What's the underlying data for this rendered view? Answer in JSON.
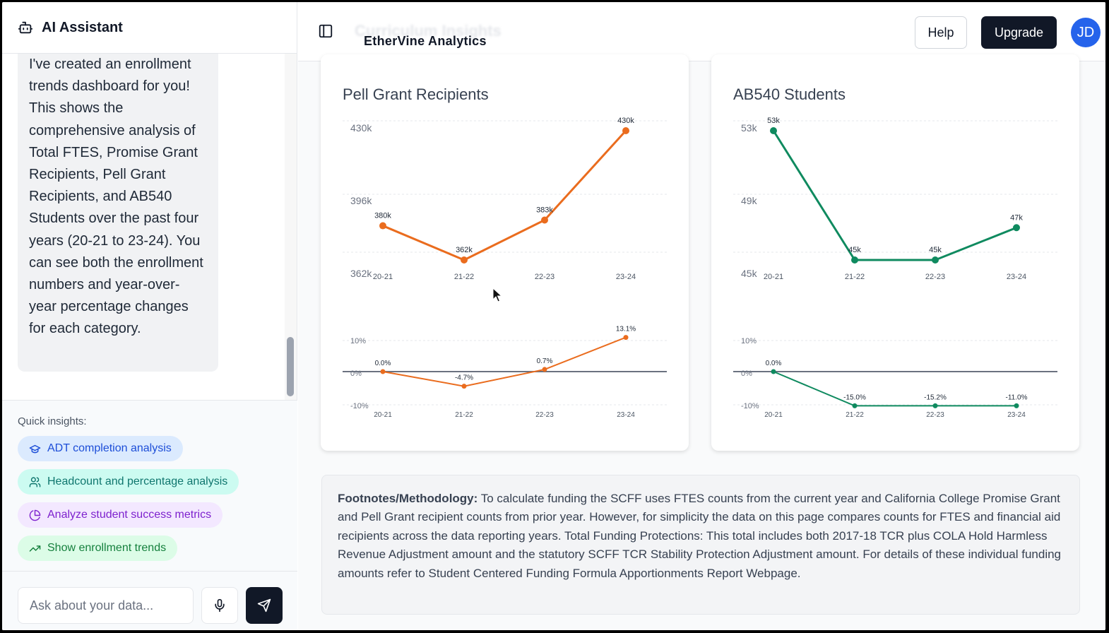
{
  "sidebar": {
    "title": "AI Assistant",
    "message": "I've created an enrollment trends dashboard for you! This shows the comprehensive analysis of Total FTES, Promise Grant Recipients, Pell Grant Recipients, and AB540 Students over the past four years (20-21 to 23-24). You can see both the enrollment numbers and year-over-year percentage changes for each category.",
    "quick_insights_label": "Quick insights:",
    "chips": [
      {
        "label": "ADT completion analysis",
        "icon": "graduation-cap-icon"
      },
      {
        "label": "Headcount and percentage analysis",
        "icon": "users-icon"
      },
      {
        "label": "Analyze student success metrics",
        "icon": "pie-chart-icon"
      },
      {
        "label": "Show enrollment trends",
        "icon": "trending-up-icon"
      }
    ],
    "input_placeholder": "Ask about your data..."
  },
  "header": {
    "ghost_title": "Curriculum Insights",
    "brand": "EtherVine Analytics",
    "help": "Help",
    "upgrade": "Upgrade",
    "avatar": "JD"
  },
  "colors": {
    "pell": "#ea6c1e",
    "ab540": "#0f8a5f",
    "accent_dark": "#111827",
    "avatar": "#2563eb"
  },
  "chart_data": [
    {
      "type": "line",
      "title": "Pell Grant Recipients",
      "categories": [
        "20-21",
        "21-22",
        "22-23",
        "23-24"
      ],
      "values": [
        380,
        362,
        383,
        430
      ],
      "value_labels": [
        "380k",
        "362k",
        "383k",
        "430k"
      ],
      "yticks": [
        "430k",
        "396k",
        "362k"
      ],
      "ylim": [
        362,
        430
      ],
      "color": "#ea6c1e",
      "pct": {
        "values": [
          0.0,
          -4.7,
          0.7,
          13.1
        ],
        "value_labels": [
          "0.0%",
          "-4.7%",
          "0.7%",
          "13.1%"
        ],
        "yticks": [
          "10%",
          "0%",
          "-10%"
        ],
        "ylim": [
          -10,
          10
        ]
      }
    },
    {
      "type": "line",
      "title": "AB540 Students",
      "categories": [
        "20-21",
        "21-22",
        "22-23",
        "23-24"
      ],
      "values": [
        53,
        45,
        45,
        47
      ],
      "value_labels": [
        "53k",
        "45k",
        "45k",
        "47k"
      ],
      "yticks": [
        "53k",
        "49k",
        "45k"
      ],
      "ylim": [
        45,
        53
      ],
      "color": "#0f8a5f",
      "pct": {
        "values": [
          0.0,
          -15.0,
          -15.2,
          -11.0
        ],
        "value_labels": [
          "0.0%",
          "-15.0%",
          "-15.2%",
          "-11.0%"
        ],
        "yticks": [
          "10%",
          "0%",
          "-10%"
        ],
        "ylim": [
          -10,
          10
        ]
      }
    }
  ],
  "footnotes": {
    "label": "Footnotes/Methodology:",
    "text": " To calculate funding the SCFF uses FTES counts from the current year and California College Promise Grant and Pell Grant recipient counts from prior year. However, for simplicity the data on this page compares counts for FTES and financial aid recipients across the data reporting years. Total Funding Protections: This total includes both 2017-18 TCR plus COLA Hold Harmless Revenue Adjustment amount and the statutory SCFF TCR Stability Protection Adjustment amount. For details of these individual funding amounts refer to Student Centered Funding Formula Apportionments Report Webpage."
  }
}
